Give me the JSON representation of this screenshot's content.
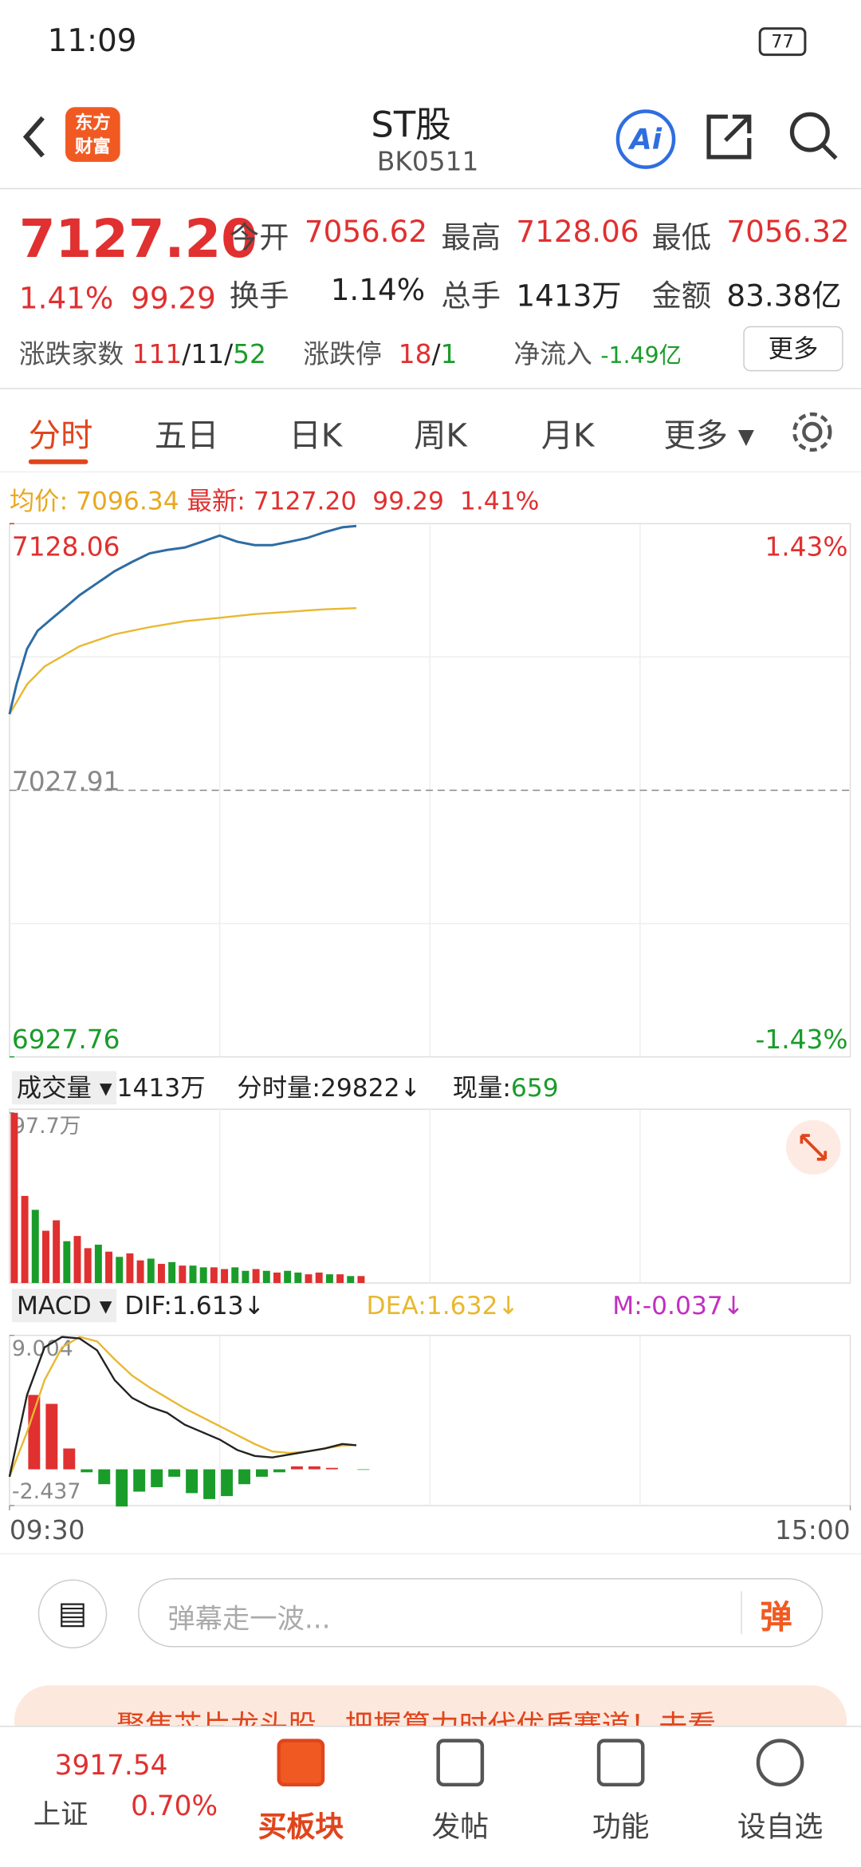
{
  "status_bar": {
    "time": "11:09",
    "battery": "77"
  },
  "header": {
    "logo": [
      "东方",
      "财富"
    ],
    "title": "ST股",
    "code": "BK0511",
    "ai": "Ai"
  },
  "quote": {
    "price": "7127.20",
    "change_pct": "1.41%",
    "change": "99.29",
    "fields": [
      {
        "label": "今开",
        "value": "7056.62"
      },
      {
        "label": "最高",
        "value": "7128.06"
      },
      {
        "label": "最低",
        "value": "7056.32"
      },
      {
        "label": "换手",
        "value": "1.14%"
      },
      {
        "label": "总手",
        "value": "1413万"
      },
      {
        "label": "金额",
        "value": "83.38亿"
      }
    ],
    "breadth": {
      "label": "涨跌家数",
      "up": "111",
      "flat": "11",
      "down": "52",
      "separator": "/"
    },
    "limit": {
      "label": "涨跌停",
      "up": "18",
      "down": "1",
      "separator": "/"
    },
    "net_inflow": {
      "label": "净流入",
      "value": "-1.49亿"
    },
    "more": "更多"
  },
  "tabs": {
    "items": [
      "分时",
      "五日",
      "日K",
      "周K",
      "月K",
      "更多"
    ],
    "active": 0
  },
  "intraday": {
    "legend": {
      "avg_label": "均价:",
      "avg": "7096.34",
      "latest_label": "最新:",
      "latest": "7127.20",
      "change": "99.29",
      "change_pct": "1.41%"
    },
    "ylim": [
      6927.76,
      7128.06
    ],
    "yticks": [
      6927.76,
      7027.91,
      7128.06
    ],
    "pct_labels": [
      "1.43%",
      "-1.43%"
    ],
    "xlim": [
      0,
      240
    ],
    "xticks": [
      {
        "value": 0,
        "label": "09:30"
      },
      {
        "value": 240,
        "label": "15:00"
      }
    ],
    "price": {
      "color": "#2e6ca4",
      "x": [
        0,
        2,
        5,
        8,
        12,
        16,
        20,
        25,
        30,
        35,
        40,
        45,
        50,
        55,
        60,
        65,
        70,
        75,
        80,
        85,
        90,
        95,
        99
      ],
      "values": [
        7056.5,
        7067.7,
        7081,
        7087.8,
        7092.3,
        7096.7,
        7101.2,
        7105.7,
        7110.2,
        7113.7,
        7116.9,
        7118.2,
        7119.1,
        7121.3,
        7123.6,
        7121.3,
        7120,
        7120,
        7121.3,
        7122.7,
        7124.9,
        7126.7,
        7127.2
      ]
    },
    "avg": {
      "color": "#e8b830",
      "x": [
        0,
        5,
        10,
        20,
        30,
        40,
        50,
        60,
        70,
        80,
        90,
        99
      ],
      "values": [
        7056.5,
        7067.7,
        7074.4,
        7082,
        7086.5,
        7089.2,
        7091.4,
        7092.7,
        7094.1,
        7095,
        7095.9,
        7096.34
      ]
    }
  },
  "volume": {
    "label": "成交量",
    "total": "1413万",
    "tick_label": "分时量:",
    "tick": "29822",
    "arrow": "↓",
    "now_label": "现量:",
    "now": "659",
    "ylim": [
      0,
      97.7
    ],
    "yticks": [
      {
        "value": 97.7,
        "label": "97.7万"
      }
    ],
    "x": [
      0,
      3,
      6,
      9,
      12,
      15,
      18,
      21,
      24,
      27,
      30,
      33,
      36,
      39,
      42,
      45,
      48,
      51,
      54,
      57,
      60,
      63,
      66,
      69,
      72,
      75,
      78,
      81,
      84,
      87,
      90,
      93,
      96,
      99
    ],
    "values": [
      97.7,
      50,
      42,
      30,
      36,
      24,
      27,
      20,
      22,
      18,
      15,
      17,
      13,
      14,
      11,
      12,
      10,
      10,
      9,
      9,
      8,
      9,
      7,
      8,
      7,
      6,
      7,
      6,
      5,
      6,
      5,
      5,
      4,
      4
    ],
    "colors": [
      "#e03030",
      "#e03030",
      "#1a9c2a",
      "#e03030",
      "#e03030",
      "#1a9c2a",
      "#e03030",
      "#e03030",
      "#1a9c2a",
      "#e03030",
      "#1a9c2a",
      "#e03030",
      "#e03030",
      "#1a9c2a",
      "#e03030",
      "#1a9c2a",
      "#e03030",
      "#1a9c2a",
      "#1a9c2a",
      "#e03030",
      "#e03030",
      "#1a9c2a",
      "#1a9c2a",
      "#e03030",
      "#1a9c2a",
      "#e03030",
      "#1a9c2a",
      "#1a9c2a",
      "#e03030",
      "#e03030",
      "#1a9c2a",
      "#e03030",
      "#1a9c2a",
      "#e03030"
    ]
  },
  "macd": {
    "label": "MACD",
    "dif_label": "DIF:",
    "dif": "1.613",
    "dea_label": "DEA:",
    "dea": "1.632",
    "m_label": "M:",
    "m": "-0.037",
    "arrow": "↓",
    "ylim": [
      -2.437,
      9.004
    ],
    "yticks": [
      -2.437,
      9.004
    ],
    "x": [
      0,
      5,
      10,
      15,
      20,
      25,
      30,
      35,
      40,
      45,
      50,
      55,
      60,
      65,
      70,
      75,
      80,
      85,
      90,
      95,
      99
    ],
    "dif_values": [
      -0.5,
      5,
      8.2,
      8.9,
      8.8,
      8,
      6,
      4.8,
      4.2,
      3.8,
      3,
      2.5,
      2,
      1.3,
      0.9,
      0.8,
      1,
      1.2,
      1.4,
      1.7,
      1.613
    ],
    "dea_values": [
      -0.5,
      2.5,
      6,
      8.2,
      8.9,
      8.6,
      7.4,
      6.3,
      5.5,
      4.8,
      4.1,
      3.5,
      2.9,
      2.3,
      1.7,
      1.2,
      1.1,
      1.2,
      1.4,
      1.6,
      1.632
    ],
    "m_values": [
      0,
      5,
      4.4,
      1.4,
      -0.2,
      -1,
      -2.5,
      -1.5,
      -1.2,
      -0.5,
      -1.6,
      -2,
      -1.8,
      -1,
      -0.5,
      -0.2,
      0.2,
      0.2,
      0.1,
      0,
      -0.037
    ]
  },
  "comment": {
    "placeholder": "弹幕走一波...",
    "button": "弹"
  },
  "banner": {
    "text": "聚焦芯片龙头股，把握算力时代优质赛道！去看"
  },
  "bottom_nav": {
    "index": {
      "value": "3917.54",
      "name": "上证",
      "change_pct": "0.70%"
    },
    "items": [
      "买板块",
      "发帖",
      "功能",
      "设自选"
    ]
  }
}
